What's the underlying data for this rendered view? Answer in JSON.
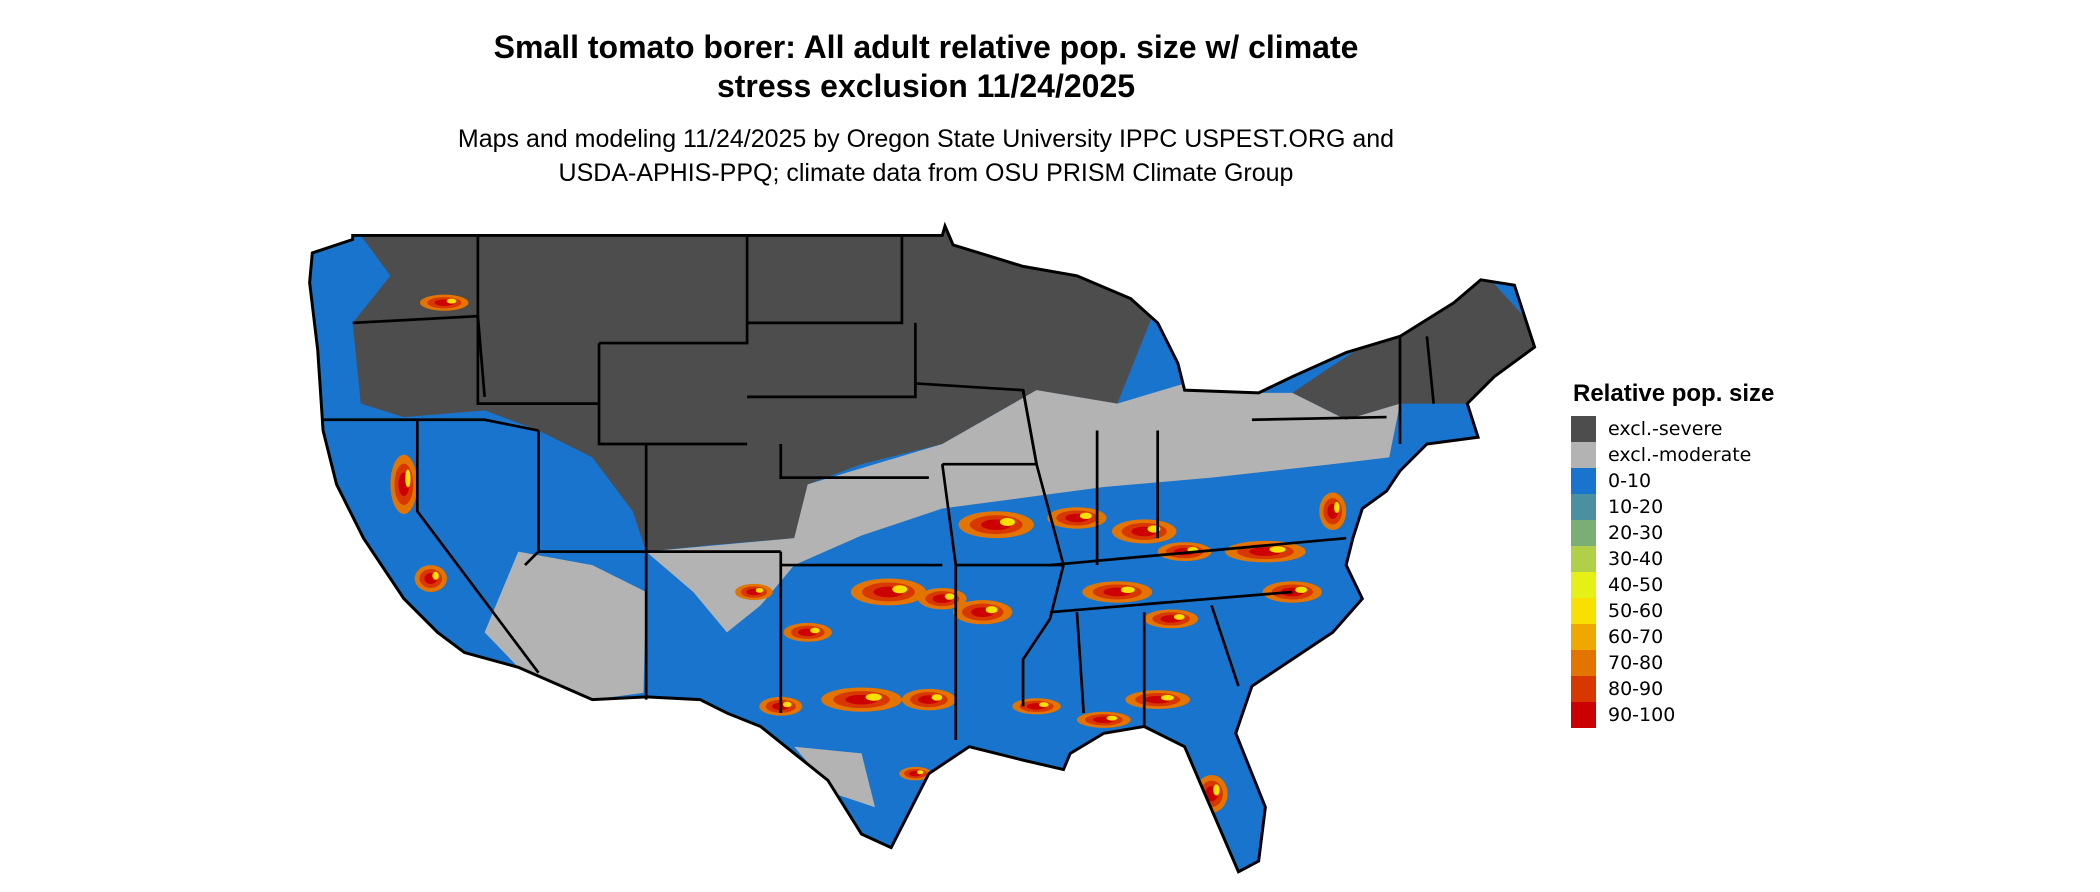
{
  "title": [
    "Small tomato borer: All adult relative pop. size w/ climate",
    "stress exclusion 11/24/2025"
  ],
  "subtitle": [
    "Maps and modeling 11/24/2025 by Oregon State University IPPC USPEST.ORG and",
    "USDA-APHIS-PPQ; climate data from OSU PRISM Climate Group"
  ],
  "legend": {
    "title": "Relative pop. size",
    "items": [
      {
        "label": "excl.-severe",
        "color": "#4d4d4d"
      },
      {
        "label": "excl.-moderate",
        "color": "#b3b3b3"
      },
      {
        "label": "0-10",
        "color": "#1874cd"
      },
      {
        "label": "10-20",
        "color": "#4a90a0"
      },
      {
        "label": "20-30",
        "color": "#7bae74"
      },
      {
        "label": "30-40",
        "color": "#b2d047"
      },
      {
        "label": "40-50",
        "color": "#e5f016"
      },
      {
        "label": "50-60",
        "color": "#f8e000"
      },
      {
        "label": "60-70",
        "color": "#eea800"
      },
      {
        "label": "70-80",
        "color": "#e37400"
      },
      {
        "label": "80-90",
        "color": "#d83800"
      },
      {
        "label": "90-100",
        "color": "#cc0000"
      }
    ]
  },
  "map": {
    "region": "Contiguous United States",
    "border_color": "#000000"
  }
}
